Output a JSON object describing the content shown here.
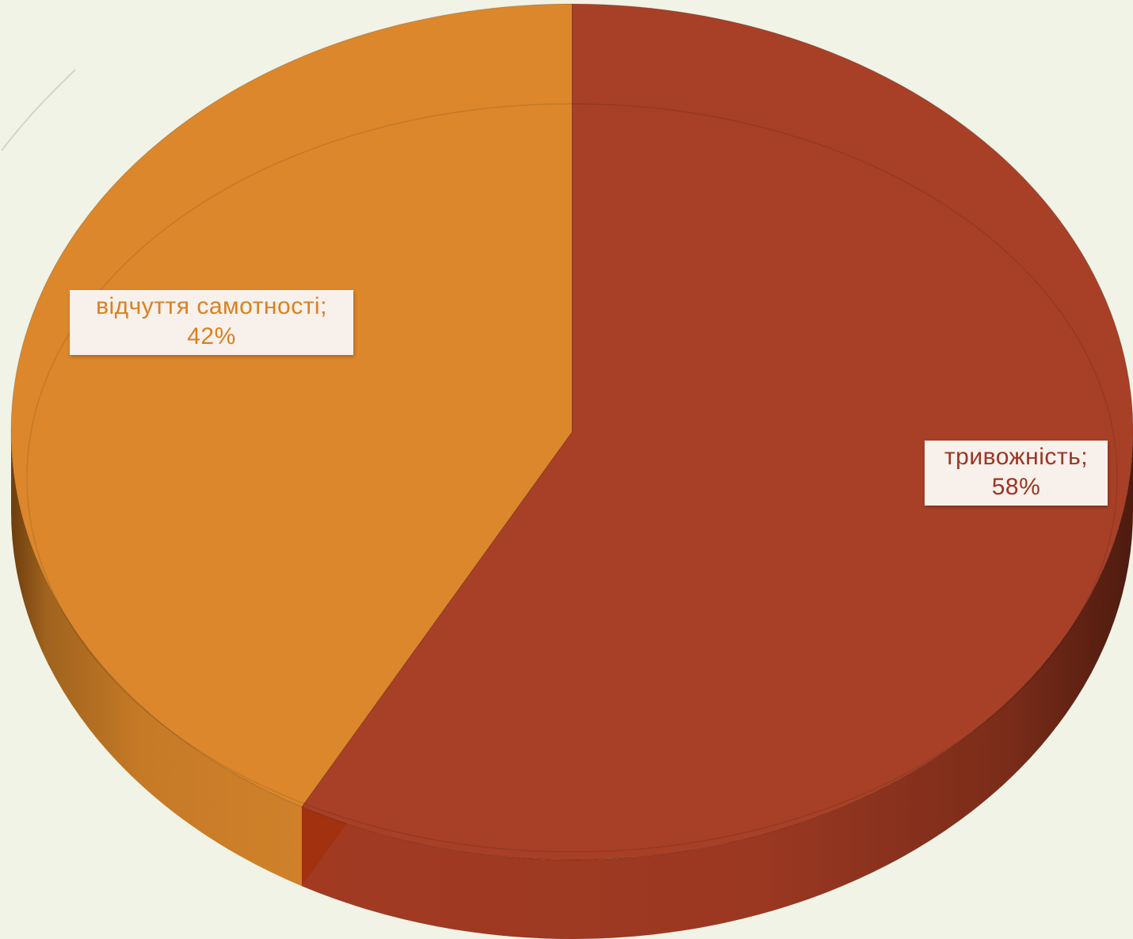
{
  "chart_data": {
    "type": "pie",
    "style": "3d",
    "title": "",
    "series": [
      {
        "slices": [
          {
            "label": "тривожність",
            "value": 58,
            "display_name": "тривожність;",
            "display_value": "58%",
            "color": "#a84027"
          },
          {
            "label": "відчуття самотності",
            "value": 42,
            "display_name": "відчуття самотності;",
            "display_value": "42%",
            "color": "#dc872c"
          }
        ]
      }
    ],
    "start_angle": "12 o'clock",
    "direction": "clockwise",
    "legend": "none",
    "data_labels": "category; percent"
  },
  "colors": {
    "background": "#f1f3e6",
    "slice_side_dark_red": "#5a1f12",
    "slice_side_dark_orange": "#8a4f14",
    "cut_face_red": "#a23110"
  }
}
